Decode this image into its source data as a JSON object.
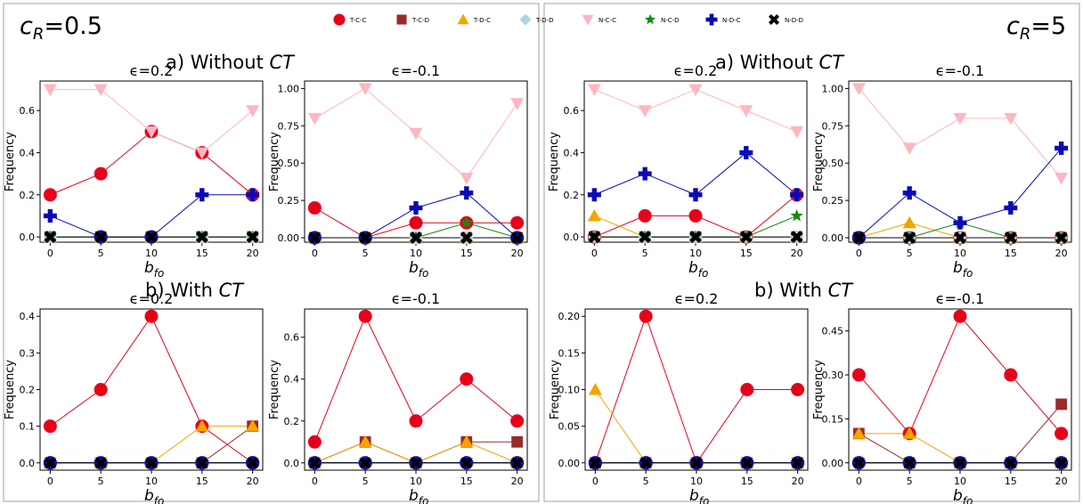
{
  "legend": {
    "entries": [
      {
        "label": "T-C-C",
        "marker": "circle",
        "color": "#e8001a"
      },
      {
        "label": "T-C-D",
        "marker": "square",
        "color": "#9b2a2a"
      },
      {
        "label": "T-D-C",
        "marker": "triangle-up",
        "color": "#f5a300"
      },
      {
        "label": "T-D-D",
        "marker": "diamond",
        "color": "#a9d6e5"
      },
      {
        "label": "N-C-C",
        "marker": "triangle-down",
        "color": "#ffb6c1"
      },
      {
        "label": "N-C-D",
        "marker": "star",
        "color": "#138a13"
      },
      {
        "label": "N-D-C",
        "marker": "plus",
        "color": "#0a0ab4"
      },
      {
        "label": "N-D-D",
        "marker": "x",
        "color": "#000000"
      }
    ]
  },
  "panels": [
    {
      "cr_label_prefix": "c",
      "cr_label_sub": "R",
      "cr_label_suffix": "=0.5",
      "section_a_title": "a) Without ",
      "section_a_italic": "CT",
      "section_b_title": "b) With ",
      "section_b_italic": "CT"
    },
    {
      "cr_label_prefix": "c",
      "cr_label_sub": "R",
      "cr_label_suffix": "=5",
      "section_a_title": "a) Without ",
      "section_a_italic": "CT",
      "section_b_title": "b) With ",
      "section_b_italic": "CT"
    }
  ],
  "chart_data": [
    {
      "type": "line",
      "panel": "cR=0.5",
      "section": "a",
      "title": "ϵ=0.2",
      "xlabel": "b_fo",
      "ylabel": "Frequency",
      "x": [
        0,
        5,
        10,
        15,
        20
      ],
      "ylim": [
        -0.025,
        0.74
      ],
      "yticks": [
        0.0,
        0.2,
        0.4,
        0.6
      ],
      "ytick_labels": [
        "0.0",
        "0.2",
        "0.4",
        "0.6"
      ],
      "series": [
        {
          "name": "T-C-C",
          "values": [
            0.2,
            0.3,
            0.5,
            0.4,
            0.2
          ]
        },
        {
          "name": "T-C-D",
          "values": [
            0,
            0,
            0,
            0,
            0
          ]
        },
        {
          "name": "T-D-C",
          "values": [
            0,
            0,
            0,
            0,
            0
          ]
        },
        {
          "name": "T-D-D",
          "values": [
            0,
            0,
            0,
            0,
            0
          ]
        },
        {
          "name": "N-C-C",
          "values": [
            0.7,
            0.7,
            0.5,
            0.4,
            0.6
          ]
        },
        {
          "name": "N-C-D",
          "values": [
            0,
            0,
            0,
            0,
            0
          ]
        },
        {
          "name": "N-D-C",
          "values": [
            0.1,
            0,
            0,
            0.2,
            0.2
          ]
        },
        {
          "name": "N-D-D",
          "values": [
            0,
            0,
            0,
            0,
            0
          ]
        }
      ]
    },
    {
      "type": "line",
      "panel": "cR=0.5",
      "section": "a",
      "title": "ϵ=-0.1",
      "xlabel": "b_fo",
      "ylabel": "Frequency",
      "x": [
        0,
        5,
        10,
        15,
        20
      ],
      "ylim": [
        -0.03,
        1.05
      ],
      "yticks": [
        0.0,
        0.25,
        0.5,
        0.75,
        1.0
      ],
      "ytick_labels": [
        "0.00",
        "0.25",
        "0.50",
        "0.75",
        "1.00"
      ],
      "series": [
        {
          "name": "T-C-C",
          "values": [
            0.2,
            0,
            0.1,
            0.1,
            0.1
          ]
        },
        {
          "name": "T-C-D",
          "values": [
            0,
            0,
            0,
            0,
            0
          ]
        },
        {
          "name": "T-D-C",
          "values": [
            0,
            0,
            0,
            0,
            0
          ]
        },
        {
          "name": "T-D-D",
          "values": [
            0,
            0,
            0,
            0,
            0
          ]
        },
        {
          "name": "N-C-C",
          "values": [
            0.8,
            1.0,
            0.7,
            0.4,
            0.9
          ]
        },
        {
          "name": "N-C-D",
          "values": [
            0,
            0,
            0,
            0.1,
            0
          ]
        },
        {
          "name": "N-D-C",
          "values": [
            0,
            0,
            0.2,
            0.3,
            0
          ]
        },
        {
          "name": "N-D-D",
          "values": [
            0,
            0,
            0,
            0,
            0
          ]
        }
      ]
    },
    {
      "type": "line",
      "panel": "cR=5",
      "section": "a",
      "title": "ϵ=0.2",
      "xlabel": "b_fo",
      "ylabel": "Frequency",
      "x": [
        0,
        5,
        10,
        15,
        20
      ],
      "ylim": [
        -0.025,
        0.74
      ],
      "yticks": [
        0.0,
        0.2,
        0.4,
        0.6
      ],
      "ytick_labels": [
        "0.0",
        "0.2",
        "0.4",
        "0.6"
      ],
      "series": [
        {
          "name": "T-C-C",
          "values": [
            0,
            0.1,
            0.1,
            0,
            0.2
          ]
        },
        {
          "name": "T-C-D",
          "values": [
            0,
            0,
            0,
            0,
            0
          ]
        },
        {
          "name": "T-D-C",
          "values": [
            0.1,
            0,
            0,
            0,
            0
          ]
        },
        {
          "name": "T-D-D",
          "values": [
            0,
            0,
            0,
            0,
            0
          ]
        },
        {
          "name": "N-C-C",
          "values": [
            0.7,
            0.6,
            0.7,
            0.6,
            0.5
          ]
        },
        {
          "name": "N-C-D",
          "values": [
            0,
            0,
            0,
            0,
            0.1
          ]
        },
        {
          "name": "N-D-C",
          "values": [
            0.2,
            0.3,
            0.2,
            0.4,
            0.2
          ]
        },
        {
          "name": "N-D-D",
          "values": [
            0,
            0,
            0,
            0,
            0
          ]
        }
      ]
    },
    {
      "type": "line",
      "panel": "cR=5",
      "section": "a",
      "title": "ϵ=-0.1",
      "xlabel": "b_fo",
      "ylabel": "Frequency",
      "x": [
        0,
        5,
        10,
        15,
        20
      ],
      "ylim": [
        -0.03,
        1.05
      ],
      "yticks": [
        0.0,
        0.25,
        0.5,
        0.75,
        1.0
      ],
      "ytick_labels": [
        "0.00",
        "0.25",
        "0.50",
        "0.75",
        "1.00"
      ],
      "series": [
        {
          "name": "T-C-C",
          "values": [
            0,
            0,
            0,
            0,
            0
          ]
        },
        {
          "name": "T-C-D",
          "values": [
            0,
            0,
            0,
            0,
            0
          ]
        },
        {
          "name": "T-D-C",
          "values": [
            0,
            0.1,
            0,
            0,
            0
          ]
        },
        {
          "name": "T-D-D",
          "values": [
            0,
            0,
            0,
            0,
            0
          ]
        },
        {
          "name": "N-C-C",
          "values": [
            1.0,
            0.6,
            0.8,
            0.8,
            0.4
          ]
        },
        {
          "name": "N-C-D",
          "values": [
            0,
            0,
            0.1,
            0,
            0
          ]
        },
        {
          "name": "N-D-C",
          "values": [
            0,
            0.3,
            0.1,
            0.2,
            0.6
          ]
        },
        {
          "name": "N-D-D",
          "values": [
            0,
            0,
            0,
            0,
            0
          ]
        }
      ]
    },
    {
      "type": "line",
      "panel": "cR=0.5",
      "section": "b",
      "title": "ϵ=0.2",
      "xlabel": "b_fo",
      "ylabel": "Frequency",
      "x": [
        0,
        5,
        10,
        15,
        20
      ],
      "ylim": [
        -0.02,
        0.42
      ],
      "yticks": [
        0.0,
        0.1,
        0.2,
        0.3,
        0.4
      ],
      "ytick_labels": [
        "0.0",
        "0.1",
        "0.2",
        "0.3",
        "0.4"
      ],
      "series": [
        {
          "name": "T-C-C",
          "values": [
            0.1,
            0.2,
            0.4,
            0.1,
            0
          ]
        },
        {
          "name": "T-C-D",
          "values": [
            0,
            0,
            0,
            0,
            0.1
          ]
        },
        {
          "name": "T-D-C",
          "values": [
            0,
            0,
            0,
            0.1,
            0.1
          ]
        },
        {
          "name": "T-D-D",
          "values": [
            0,
            0,
            0,
            0,
            0
          ]
        },
        {
          "name": "N-C-C",
          "values": [
            0,
            0,
            0,
            0,
            0
          ]
        },
        {
          "name": "N-C-D",
          "values": [
            0,
            0,
            0,
            0,
            0
          ]
        },
        {
          "name": "N-D-C",
          "values": [
            0,
            0,
            0,
            0,
            0
          ]
        },
        {
          "name": "N-D-D",
          "values": [
            0,
            0,
            0,
            0,
            0
          ]
        }
      ]
    },
    {
      "type": "line",
      "panel": "cR=0.5",
      "section": "b",
      "title": "ϵ=-0.1",
      "xlabel": "b_fo",
      "ylabel": "Frequency",
      "x": [
        0,
        5,
        10,
        15,
        20
      ],
      "ylim": [
        -0.035,
        0.735
      ],
      "yticks": [
        0.0,
        0.2,
        0.4,
        0.6
      ],
      "ytick_labels": [
        "0.0",
        "0.2",
        "0.4",
        "0.6"
      ],
      "series": [
        {
          "name": "T-C-C",
          "values": [
            0.1,
            0.7,
            0.2,
            0.4,
            0.2
          ]
        },
        {
          "name": "T-C-D",
          "values": [
            0,
            0.1,
            0,
            0.1,
            0.1
          ]
        },
        {
          "name": "T-D-C",
          "values": [
            0,
            0.1,
            0,
            0.1,
            0
          ]
        },
        {
          "name": "T-D-D",
          "values": [
            0,
            0,
            0,
            0,
            0
          ]
        },
        {
          "name": "N-C-C",
          "values": [
            0,
            0,
            0,
            0,
            0
          ]
        },
        {
          "name": "N-C-D",
          "values": [
            0,
            0,
            0,
            0,
            0
          ]
        },
        {
          "name": "N-D-C",
          "values": [
            0,
            0,
            0,
            0,
            0
          ]
        },
        {
          "name": "N-D-D",
          "values": [
            0,
            0,
            0,
            0,
            0
          ]
        }
      ]
    },
    {
      "type": "line",
      "panel": "cR=5",
      "section": "b",
      "title": "ϵ=0.2",
      "xlabel": "b_fo",
      "ylabel": "Frequency",
      "x": [
        0,
        5,
        10,
        15,
        20
      ],
      "ylim": [
        -0.01,
        0.21
      ],
      "yticks": [
        0.0,
        0.05,
        0.1,
        0.15,
        0.2
      ],
      "ytick_labels": [
        "0.00",
        "0.05",
        "0.10",
        "0.15",
        "0.20"
      ],
      "series": [
        {
          "name": "T-C-C",
          "values": [
            0,
            0.2,
            0,
            0.1,
            0.1
          ]
        },
        {
          "name": "T-C-D",
          "values": [
            0,
            0,
            0,
            0,
            0
          ]
        },
        {
          "name": "T-D-C",
          "values": [
            0.1,
            0,
            0,
            0,
            0
          ]
        },
        {
          "name": "T-D-D",
          "values": [
            0,
            0,
            0,
            0,
            0
          ]
        },
        {
          "name": "N-C-C",
          "values": [
            0,
            0,
            0,
            0,
            0
          ]
        },
        {
          "name": "N-C-D",
          "values": [
            0,
            0,
            0,
            0,
            0
          ]
        },
        {
          "name": "N-D-C",
          "values": [
            0,
            0,
            0,
            0,
            0
          ]
        },
        {
          "name": "N-D-D",
          "values": [
            0,
            0,
            0,
            0,
            0
          ]
        }
      ]
    },
    {
      "type": "line",
      "panel": "cR=5",
      "section": "b",
      "title": "ϵ=-0.1",
      "xlabel": "b_fo",
      "ylabel": "Frequency",
      "x": [
        0,
        5,
        10,
        15,
        20
      ],
      "ylim": [
        -0.025,
        0.525
      ],
      "yticks": [
        0.0,
        0.15,
        0.3,
        0.45
      ],
      "ytick_labels": [
        "0.00",
        "0.15",
        "0.30",
        "0.45"
      ],
      "series": [
        {
          "name": "T-C-C",
          "values": [
            0.3,
            0.1,
            0.5,
            0.3,
            0.1
          ]
        },
        {
          "name": "T-C-D",
          "values": [
            0.1,
            0,
            0,
            0,
            0.2
          ]
        },
        {
          "name": "T-D-C",
          "values": [
            0.1,
            0.1,
            0,
            0,
            0
          ]
        },
        {
          "name": "T-D-D",
          "values": [
            0,
            0,
            0,
            0,
            0
          ]
        },
        {
          "name": "N-C-C",
          "values": [
            0,
            0,
            0,
            0,
            0
          ]
        },
        {
          "name": "N-C-D",
          "values": [
            0,
            0,
            0,
            0,
            0
          ]
        },
        {
          "name": "N-D-C",
          "values": [
            0,
            0,
            0,
            0,
            0
          ]
        },
        {
          "name": "N-D-D",
          "values": [
            0,
            0,
            0,
            0,
            0
          ]
        }
      ]
    }
  ]
}
